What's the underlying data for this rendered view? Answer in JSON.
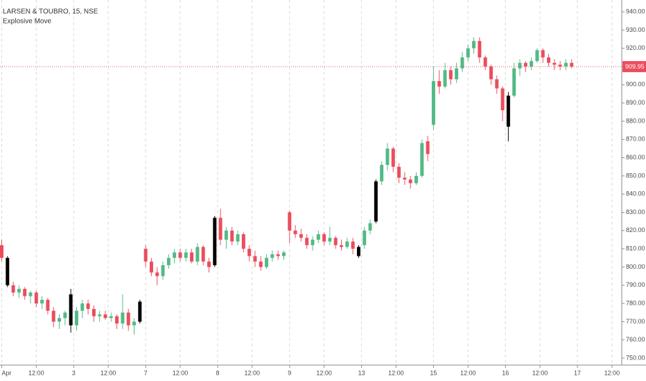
{
  "chart_data": {
    "type": "candlestick",
    "title": "LARSEN & TOUBRO, 15, NSE",
    "indicator": {
      "name": "Explosive Move",
      "color": "#000000",
      "x": [
        1,
        12,
        24,
        37,
        62,
        65,
        88
      ]
    },
    "up_color": "#53b987",
    "down_color": "#eb4d5c",
    "x": [
      0,
      1,
      2,
      3,
      4,
      5,
      6,
      7,
      8,
      9,
      10,
      11,
      12,
      13,
      14,
      15,
      16,
      17,
      18,
      19,
      20,
      21,
      22,
      23,
      24,
      25,
      26,
      27,
      28,
      29,
      30,
      31,
      32,
      33,
      34,
      35,
      36,
      37,
      38,
      39,
      40,
      41,
      42,
      43,
      44,
      45,
      46,
      47,
      48,
      49,
      50,
      51,
      52,
      53,
      54,
      55,
      56,
      57,
      58,
      59,
      60,
      61,
      62,
      63,
      64,
      65,
      66,
      67,
      68,
      69,
      70,
      71,
      72,
      73,
      74,
      75,
      76,
      77,
      78,
      79,
      80,
      81,
      82,
      83,
      84,
      85,
      86,
      87,
      88,
      89,
      90,
      91,
      92,
      93,
      94,
      95,
      96,
      97,
      98,
      99
    ],
    "open": [
      812,
      805,
      790,
      786,
      788,
      784,
      786,
      780,
      782,
      776,
      770,
      772,
      785,
      768,
      776,
      780,
      777,
      773,
      774,
      772,
      773,
      769,
      775,
      768,
      770,
      810,
      803,
      797,
      795,
      801,
      805,
      808,
      805,
      808,
      803,
      811,
      803,
      801,
      827,
      815,
      820,
      814,
      818,
      810,
      806,
      803,
      800,
      805,
      807,
      806,
      830,
      820,
      818,
      816,
      812,
      815,
      818,
      814,
      816,
      812,
      811,
      814,
      811,
      812,
      820,
      825,
      847,
      856,
      865,
      855,
      849,
      848,
      846,
      850,
      869,
      878,
      902,
      899,
      908,
      903,
      909,
      915,
      920,
      924,
      915,
      910,
      903,
      898,
      877,
      894,
      909,
      912,
      910,
      913,
      919,
      915,
      912,
      911,
      910,
      912
    ],
    "high": [
      815,
      806,
      792,
      790,
      789,
      787,
      787,
      784,
      783,
      778,
      774,
      776,
      788,
      778,
      782,
      782,
      779,
      776,
      776,
      775,
      774,
      785,
      777,
      772,
      782,
      812,
      805,
      800,
      803,
      807,
      810,
      810,
      810,
      810,
      813,
      812,
      805,
      828,
      832,
      822,
      822,
      820,
      819,
      812,
      809,
      806,
      807,
      809,
      809,
      809,
      831,
      823,
      821,
      818,
      817,
      820,
      819,
      822,
      817,
      815,
      816,
      816,
      812,
      822,
      826,
      848,
      858,
      868,
      866,
      857,
      852,
      850,
      852,
      870,
      872,
      910,
      908,
      912,
      910,
      912,
      918,
      922,
      926,
      926,
      916,
      911,
      905,
      899,
      896,
      912,
      914,
      913,
      915,
      920,
      920,
      917,
      914,
      913,
      914,
      914
    ],
    "low": [
      803,
      789,
      784,
      783,
      782,
      780,
      778,
      777,
      774,
      767,
      766,
      768,
      764,
      765,
      772,
      774,
      770,
      770,
      771,
      770,
      766,
      766,
      765,
      763,
      769,
      800,
      795,
      790,
      793,
      799,
      802,
      803,
      803,
      802,
      801,
      801,
      797,
      800,
      812,
      810,
      812,
      812,
      808,
      803,
      800,
      798,
      799,
      803,
      804,
      804,
      813,
      816,
      814,
      810,
      809,
      813,
      812,
      812,
      810,
      809,
      810,
      807,
      805,
      810,
      818,
      824,
      845,
      853,
      852,
      846,
      845,
      843,
      845,
      849,
      858,
      875,
      895,
      898,
      900,
      901,
      907,
      913,
      917,
      912,
      908,
      900,
      895,
      880,
      869,
      893,
      905,
      907,
      908,
      912,
      912,
      910,
      908,
      908,
      908,
      909
    ],
    "close": [
      805,
      790,
      786,
      788,
      784,
      786,
      780,
      782,
      776,
      770,
      772,
      775,
      768,
      776,
      780,
      777,
      773,
      774,
      772,
      773,
      769,
      775,
      768,
      770,
      781,
      803,
      797,
      795,
      801,
      805,
      808,
      805,
      808,
      803,
      811,
      803,
      800,
      827,
      815,
      820,
      814,
      818,
      810,
      806,
      803,
      800,
      805,
      807,
      806,
      808,
      820,
      818,
      816,
      812,
      815,
      818,
      814,
      816,
      812,
      811,
      814,
      810,
      806,
      820,
      824,
      847,
      856,
      865,
      855,
      849,
      848,
      846,
      850,
      868,
      862,
      902,
      899,
      908,
      903,
      909,
      915,
      920,
      924,
      915,
      910,
      903,
      898,
      886,
      894,
      909,
      912,
      910,
      913,
      919,
      915,
      912,
      911,
      910,
      912,
      909.95
    ],
    "current_price": 909.95,
    "xlim": [
      -0.3,
      107.7
    ],
    "xticks": [
      {
        "value": 0,
        "label": "Apr"
      },
      {
        "value": 6,
        "label": "12:00"
      },
      {
        "value": 12.5,
        "label": "3"
      },
      {
        "value": 18.5,
        "label": "12:00"
      },
      {
        "value": 25,
        "label": "7"
      },
      {
        "value": 31,
        "label": "12:00"
      },
      {
        "value": 37.5,
        "label": "8"
      },
      {
        "value": 43.5,
        "label": "12:00"
      },
      {
        "value": 50,
        "label": "9"
      },
      {
        "value": 56,
        "label": "12:00"
      },
      {
        "value": 62.5,
        "label": "13"
      },
      {
        "value": 68.5,
        "label": "12:00"
      },
      {
        "value": 75,
        "label": "15"
      },
      {
        "value": 81,
        "label": "12:00"
      },
      {
        "value": 87.5,
        "label": "16"
      },
      {
        "value": 93.5,
        "label": "12:00"
      },
      {
        "value": 100,
        "label": "17"
      },
      {
        "value": 106,
        "label": "12:00"
      }
    ],
    "ylim": [
      746.2,
      946.5
    ],
    "yticks": [
      {
        "value": 750,
        "label": "750.00"
      },
      {
        "value": 760,
        "label": "760.00"
      },
      {
        "value": 770,
        "label": "770.00"
      },
      {
        "value": 780,
        "label": "780.00"
      },
      {
        "value": 790,
        "label": "790.00"
      },
      {
        "value": 800,
        "label": "800.00"
      },
      {
        "value": 810,
        "label": "810.00"
      },
      {
        "value": 820,
        "label": "820.00"
      },
      {
        "value": 830,
        "label": "830.00"
      },
      {
        "value": 840,
        "label": "840.00"
      },
      {
        "value": 850,
        "label": "850.00"
      },
      {
        "value": 860,
        "label": "860.00"
      },
      {
        "value": 870,
        "label": "870.00"
      },
      {
        "value": 880,
        "label": "880.00"
      },
      {
        "value": 890,
        "label": "890.00"
      },
      {
        "value": 900,
        "label": "900.00"
      },
      {
        "value": 910,
        "label": "910.00"
      },
      {
        "value": 920,
        "label": "920.00"
      },
      {
        "value": 930,
        "label": "930.00"
      },
      {
        "value": 940,
        "label": "940.00"
      }
    ],
    "grid": true
  }
}
